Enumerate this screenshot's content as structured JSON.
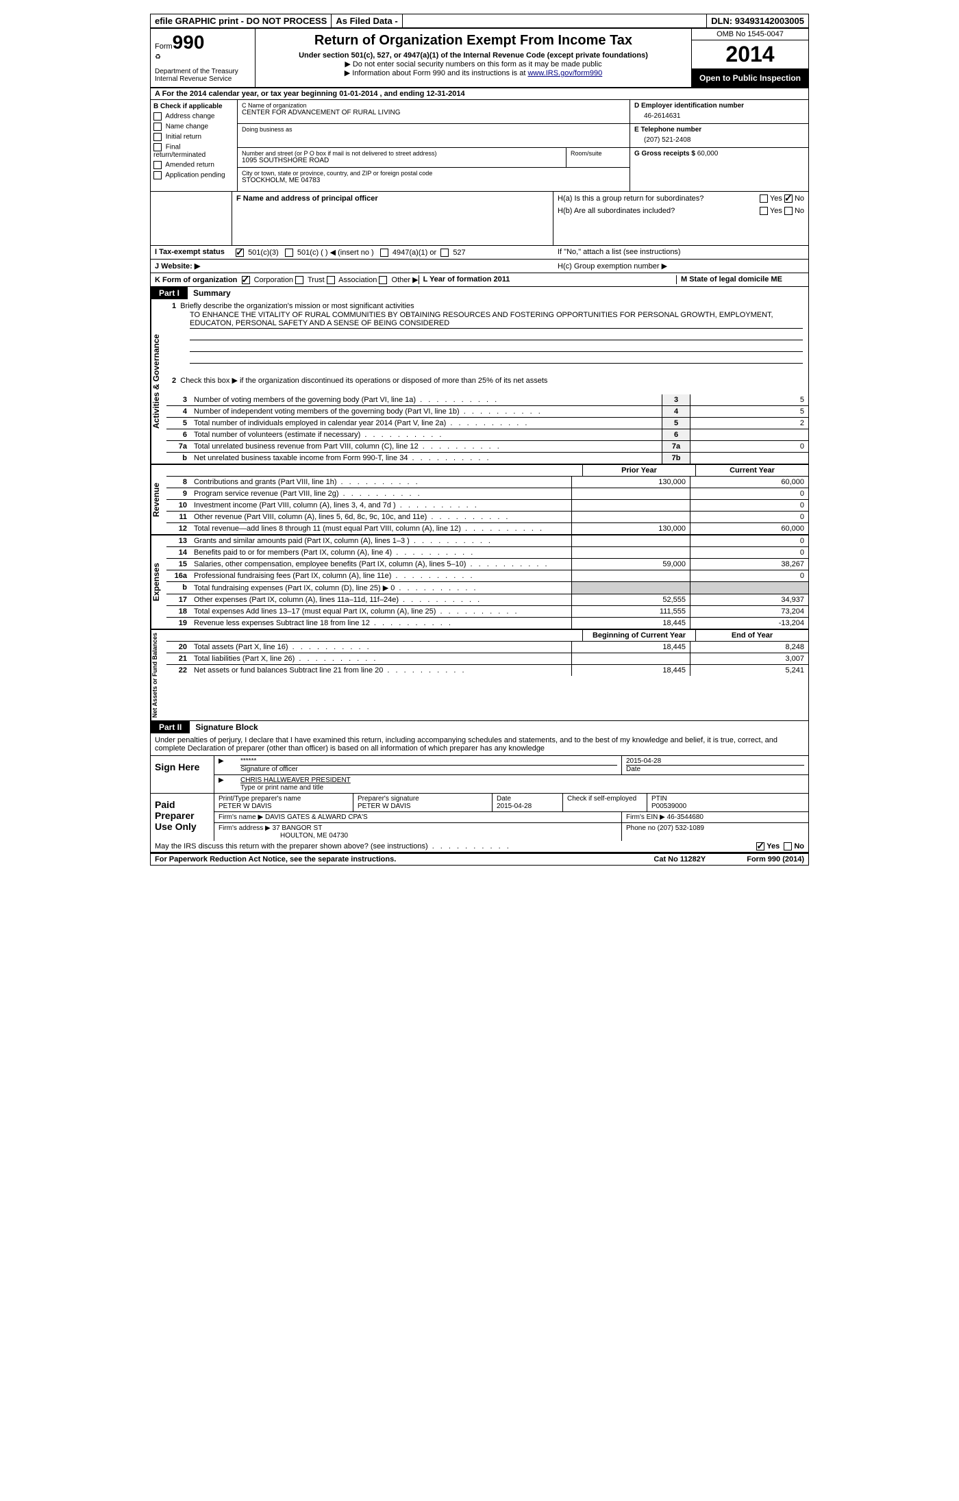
{
  "topbar": {
    "efile": "efile GRAPHIC print - DO NOT PROCESS",
    "asfiled": "As Filed Data -",
    "dln_label": "DLN:",
    "dln": "93493142003005"
  },
  "header": {
    "form_prefix": "Form",
    "form_no": "990",
    "dept1": "Department of the Treasury",
    "dept2": "Internal Revenue Service",
    "title": "Return of Organization Exempt From Income Tax",
    "subtitle": "Under section 501(c), 527, or 4947(a)(1) of the Internal Revenue Code (except private foundations)",
    "instr1": "▶ Do not enter social security numbers on this form as it may be made public",
    "instr2_a": "▶ Information about Form 990 and its instructions is at ",
    "instr2_link": "www.IRS.gov/form990",
    "omb": "OMB No 1545-0047",
    "year": "2014",
    "inspect": "Open to Public Inspection"
  },
  "row_a": "A  For the 2014 calendar year, or tax year beginning 01-01-2014    , and ending 12-31-2014",
  "col_b": {
    "header": "B Check if applicable",
    "items": [
      "Address change",
      "Name change",
      "Initial return",
      "Final return/terminated",
      "Amended return",
      "Application pending"
    ]
  },
  "col_c": {
    "name_label": "C Name of organization",
    "name": "CENTER FOR ADVANCEMENT OF RURAL LIVING",
    "dba_label": "Doing business as",
    "addr_label": "Number and street (or P O  box if mail is not delivered to street address)",
    "room_label": "Room/suite",
    "addr": "1095 SOUTHSHORE ROAD",
    "city_label": "City or town, state or province, country, and ZIP or foreign postal code",
    "city": "STOCKHOLM, ME  04783"
  },
  "col_d": {
    "ein_label": "D Employer identification number",
    "ein": "46-2614631",
    "tel_label": "E Telephone number",
    "tel": "(207) 521-2408",
    "gross_label": "G Gross receipts $",
    "gross": "60,000"
  },
  "f_label": "F  Name and address of principal officer",
  "h": {
    "ha": "H(a)  Is this a group return for subordinates?",
    "hb": "H(b)  Are all subordinates included?",
    "hb_note": "If \"No,\" attach a list  (see instructions)",
    "hc": "H(c)  Group exemption number ▶",
    "yes": "Yes",
    "no": "No"
  },
  "row_i": "I  Tax-exempt status",
  "row_i_opts": [
    "501(c)(3)",
    "501(c) (  ) ◀ (insert no )",
    "4947(a)(1) or",
    "527"
  ],
  "row_j": "J  Website: ▶",
  "row_k": {
    "label": "K Form of organization",
    "opts": [
      "Corporation",
      "Trust",
      "Association",
      "Other ▶"
    ],
    "l": "L Year of formation  2011",
    "m": "M State of legal domicile  ME"
  },
  "part1": {
    "num": "Part I",
    "title": "Summary"
  },
  "mission": {
    "num": "1",
    "label": "Briefly describe the organization's mission or most significant activities",
    "text": "TO ENHANCE THE VITALITY OF RURAL COMMUNITIES BY OBTAINING RESOURCES AND FOSTERING OPPORTUNITIES FOR PERSONAL GROWTH, EMPLOYMENT, EDUCATON, PERSONAL SAFETY AND A SENSE OF BEING CONSIDERED"
  },
  "line2": {
    "num": "2",
    "text": "Check this box ▶    if the organization discontinued its operations or disposed of more than 25% of its net assets"
  },
  "gov_lines": [
    {
      "n": "3",
      "t": "Number of voting members of the governing body (Part VI, line 1a)",
      "b": "3",
      "v": "5"
    },
    {
      "n": "4",
      "t": "Number of independent voting members of the governing body (Part VI, line 1b)",
      "b": "4",
      "v": "5"
    },
    {
      "n": "5",
      "t": "Total number of individuals employed in calendar year 2014 (Part V, line 2a)",
      "b": "5",
      "v": "2"
    },
    {
      "n": "6",
      "t": "Total number of volunteers (estimate if necessary)",
      "b": "6",
      "v": ""
    },
    {
      "n": "7a",
      "t": "Total unrelated business revenue from Part VIII, column (C), line 12",
      "b": "7a",
      "v": "0"
    },
    {
      "n": "b",
      "t": "Net unrelated business taxable income from Form 990-T, line 34",
      "b": "7b",
      "v": ""
    }
  ],
  "rev_head": {
    "py": "Prior Year",
    "cy": "Current Year"
  },
  "rev_lines": [
    {
      "n": "8",
      "t": "Contributions and grants (Part VIII, line 1h)",
      "py": "130,000",
      "cy": "60,000"
    },
    {
      "n": "9",
      "t": "Program service revenue (Part VIII, line 2g)",
      "py": "",
      "cy": "0"
    },
    {
      "n": "10",
      "t": "Investment income (Part VIII, column (A), lines 3, 4, and 7d )",
      "py": "",
      "cy": "0"
    },
    {
      "n": "11",
      "t": "Other revenue (Part VIII, column (A), lines 5, 6d, 8c, 9c, 10c, and 11e)",
      "py": "",
      "cy": "0"
    },
    {
      "n": "12",
      "t": "Total revenue—add lines 8 through 11 (must equal Part VIII, column (A), line 12)",
      "py": "130,000",
      "cy": "60,000"
    }
  ],
  "exp_lines": [
    {
      "n": "13",
      "t": "Grants and similar amounts paid (Part IX, column (A), lines 1–3 )",
      "py": "",
      "cy": "0"
    },
    {
      "n": "14",
      "t": "Benefits paid to or for members (Part IX, column (A), line 4)",
      "py": "",
      "cy": "0"
    },
    {
      "n": "15",
      "t": "Salaries, other compensation, employee benefits (Part IX, column (A), lines 5–10)",
      "py": "59,000",
      "cy": "38,267"
    },
    {
      "n": "16a",
      "t": "Professional fundraising fees (Part IX, column (A), line 11e)",
      "py": "",
      "cy": "0"
    },
    {
      "n": "b",
      "t": "Total fundraising expenses (Part IX, column (D), line 25) ▶ 0",
      "py": "gray",
      "cy": "gray"
    },
    {
      "n": "17",
      "t": "Other expenses (Part IX, column (A), lines 11a–11d, 11f–24e)",
      "py": "52,555",
      "cy": "34,937"
    },
    {
      "n": "18",
      "t": "Total expenses  Add lines 13–17 (must equal Part IX, column (A), line 25)",
      "py": "111,555",
      "cy": "73,204"
    },
    {
      "n": "19",
      "t": "Revenue less expenses  Subtract line 18 from line 12",
      "py": "18,445",
      "cy": "-13,204"
    }
  ],
  "net_head": {
    "by": "Beginning of Current Year",
    "ey": "End of Year"
  },
  "net_lines": [
    {
      "n": "20",
      "t": "Total assets (Part X, line 16)",
      "py": "18,445",
      "cy": "8,248"
    },
    {
      "n": "21",
      "t": "Total liabilities (Part X, line 26)",
      "py": "",
      "cy": "3,007"
    },
    {
      "n": "22",
      "t": "Net assets or fund balances  Subtract line 21 from line 20",
      "py": "18,445",
      "cy": "5,241"
    }
  ],
  "side_labels": {
    "gov": "Activities & Governance",
    "rev": "Revenue",
    "exp": "Expenses",
    "net": "Net Assets or Fund Balances"
  },
  "part2": {
    "num": "Part II",
    "title": "Signature Block"
  },
  "declaration": "Under penalties of perjury, I declare that I have examined this return, including accompanying schedules and statements, and to the best of my knowledge and belief, it is true, correct, and complete  Declaration of preparer (other than officer) is based on all information of which preparer has any knowledge",
  "sign": {
    "label": "Sign Here",
    "stars": "******",
    "sig_label": "Signature of officer",
    "date": "2015-04-28",
    "date_label": "Date",
    "name": "CHRIS HALLWEAVER PRESIDENT",
    "name_label": "Type or print name and title"
  },
  "preparer": {
    "label": "Paid Preparer Use Only",
    "name_label": "Print/Type preparer's name",
    "name": "PETER W DAVIS",
    "sig_label": "Preparer's signature",
    "sig": "PETER W DAVIS",
    "date_label": "Date",
    "date": "2015-04-28",
    "check_label": "Check     if self-employed",
    "ptin_label": "PTIN",
    "ptin": "P00539000",
    "firm_name_label": "Firm's name    ▶",
    "firm_name": "DAVIS GATES & ALWARD CPA'S",
    "firm_ein_label": "Firm's EIN ▶",
    "firm_ein": "46-3544680",
    "firm_addr_label": "Firm's address ▶",
    "firm_addr1": "37 BANGOR ST",
    "firm_addr2": "HOULTON, ME  04730",
    "phone_label": "Phone no",
    "phone": "(207) 532-1089"
  },
  "discuss": {
    "text": "May the IRS discuss this return with the preparer shown above? (see instructions)",
    "yes": "Yes",
    "no": "No"
  },
  "footer": {
    "left": "For Paperwork Reduction Act Notice, see the separate instructions.",
    "center": "Cat No 11282Y",
    "right": "Form 990 (2014)"
  }
}
